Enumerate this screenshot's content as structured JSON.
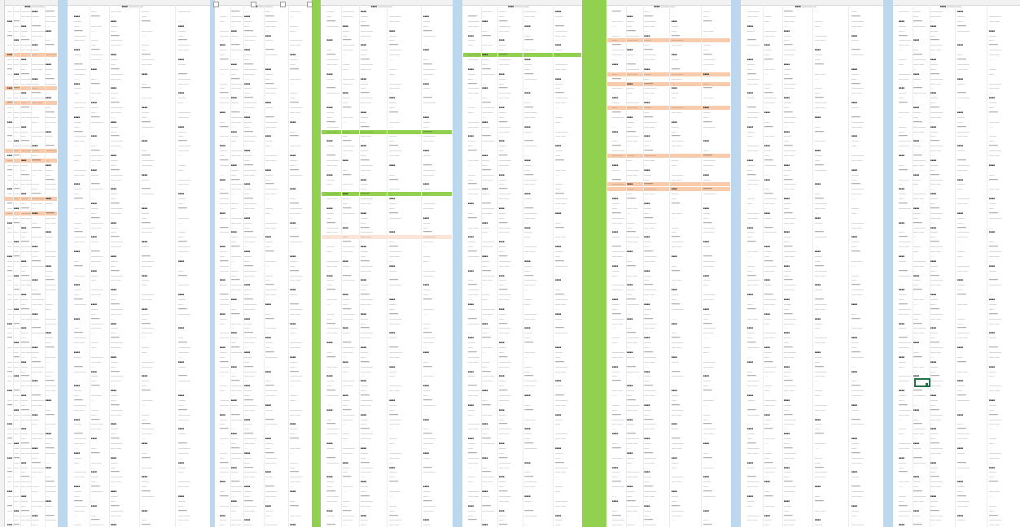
{
  "colors": {
    "separator": "#bdd7ee",
    "highlight_green": "#92d050",
    "highlight_orange": "#f8cbad",
    "highlight_peach": "#fce4d6",
    "selection": "#217346"
  },
  "row_text": [
    "—— ——",
    "·····",
    "■■■■",
    "———",
    "—— ·",
    "━━━━━━",
    "—————"
  ],
  "panels": [
    {
      "header": "■■■■ ——————",
      "highlights": [
        [
          9,
          "#f8cbad"
        ],
        [
          16,
          "#f8cbad"
        ],
        [
          19,
          "#f8cbad"
        ],
        [
          29,
          "#f8cbad"
        ],
        [
          31,
          "#f8cbad"
        ],
        [
          39,
          "#f8cbad"
        ],
        [
          42,
          "#f8cbad"
        ]
      ]
    },
    {
      "header": "■■■■ ——————",
      "highlights": []
    },
    {
      "header": "■■■■ ——————",
      "highlights": []
    },
    {
      "header": "■■■■ ——————",
      "highlights": [
        [
          47,
          "#fce4d6"
        ],
        [
          38,
          "#92d050"
        ],
        [
          25,
          "#92d050"
        ]
      ]
    },
    {
      "header": "■■■■ ——————",
      "highlights": [
        [
          9,
          "#92d050"
        ]
      ]
    },
    {
      "header": "■■■■ ——————",
      "highlights": [
        [
          6,
          "#f8cbad"
        ],
        [
          13,
          "#f8cbad"
        ],
        [
          15,
          "#f8cbad"
        ],
        [
          20,
          "#f8cbad"
        ],
        [
          30,
          "#f8cbad"
        ],
        [
          36,
          "#f8cbad"
        ],
        [
          37,
          "#f8cbad"
        ]
      ]
    },
    {
      "header": "■■■■ ——————",
      "highlights": []
    },
    {
      "header": "■■■■ ——————",
      "highlights": []
    }
  ]
}
